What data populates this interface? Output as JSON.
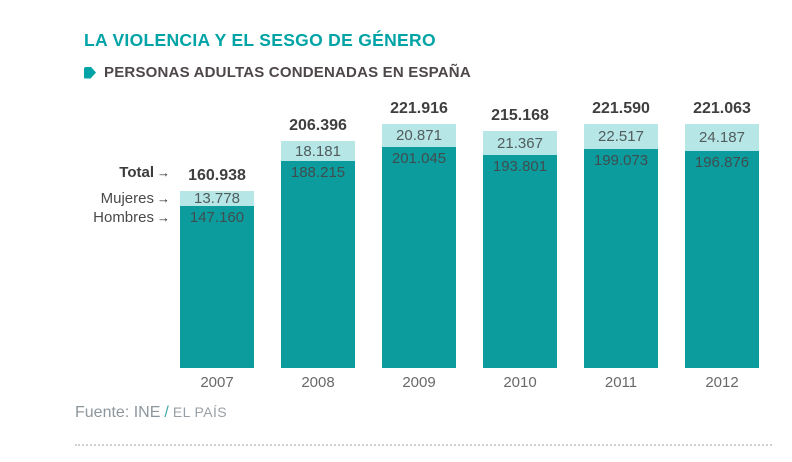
{
  "header": {
    "title": "LA VIOLENCIA Y EL SESGO DE GÉNERO",
    "subtitle": "PERSONAS ADULTAS CONDENADAS EN ESPAÑA"
  },
  "annotations": {
    "total_label": "Total",
    "mujeres_label": "Mujeres",
    "hombres_label": "Hombres",
    "arrow": "→"
  },
  "footer": {
    "source": "Fuente: INE",
    "separator": "/",
    "brand": "EL PAÍS"
  },
  "colors": {
    "accent_teal": "#00a3a6",
    "bar_dark": "#0d9c9e",
    "bar_light": "#b7e6e6",
    "total_text": "#3f3f3f",
    "year_text": "#696969",
    "source_text": "#8d969d"
  },
  "chart_data": {
    "type": "bar",
    "stacked": true,
    "title": "PERSONAS ADULTAS CONDENADAS EN ESPAÑA",
    "categories": [
      "2007",
      "2008",
      "2009",
      "2010",
      "2011",
      "2012"
    ],
    "series": [
      {
        "name": "Mujeres",
        "color": "#b7e6e6",
        "values": [
          13778,
          18181,
          20871,
          21367,
          22517,
          24187
        ],
        "labels": [
          "13.778",
          "18.181",
          "20.871",
          "21.367",
          "22.517",
          "24.187"
        ]
      },
      {
        "name": "Hombres",
        "color": "#0d9c9e",
        "values": [
          147160,
          188215,
          201045,
          193801,
          199073,
          196876
        ],
        "labels": [
          "147.160",
          "188.215",
          "201.045",
          "193.801",
          "199.073",
          "196.876"
        ]
      }
    ],
    "totals": {
      "values": [
        160938,
        206396,
        221916,
        215168,
        221590,
        221063
      ],
      "labels": [
        "160.938",
        "206.396",
        "221.916",
        "215.168",
        "221.590",
        "221.063"
      ]
    },
    "xlabel": "",
    "ylabel": "",
    "ylim": [
      0,
      230000
    ],
    "grid": false,
    "legend_position": "left annotations pointing at first bar"
  }
}
